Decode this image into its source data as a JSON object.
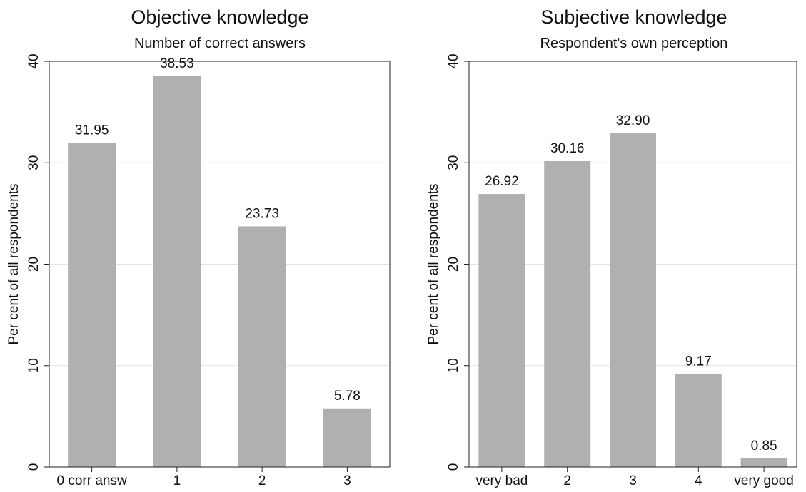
{
  "colors": {
    "bar": "#b0b0b0",
    "grid": "#e3e3e3",
    "axis": "#222222",
    "text": "#111111"
  },
  "chart_data": [
    {
      "type": "bar",
      "title": "Objective knowledge",
      "subtitle": "Number of correct answers",
      "ylabel": "Per cent of all respondents",
      "xlabel": "",
      "categories": [
        "0 corr answ",
        "1",
        "2",
        "3"
      ],
      "values": [
        31.95,
        38.53,
        23.73,
        5.78
      ],
      "value_labels": [
        "31.95",
        "38.53",
        "23.73",
        "5.78"
      ],
      "ylim": [
        0,
        40
      ],
      "yticks": [
        "0",
        "10",
        "20",
        "30",
        "40"
      ],
      "grid": true,
      "legend": "none"
    },
    {
      "type": "bar",
      "title": "Subjective knowledge",
      "subtitle": "Respondent's own perception",
      "ylabel": "Per cent of all respondents",
      "xlabel": "",
      "categories": [
        "very bad",
        "2",
        "3",
        "4",
        "very good"
      ],
      "values": [
        26.92,
        30.16,
        32.9,
        9.17,
        0.85
      ],
      "value_labels": [
        "26.92",
        "30.16",
        "32.90",
        "9.17",
        "0.85"
      ],
      "ylim": [
        0,
        40
      ],
      "yticks": [
        "0",
        "10",
        "20",
        "30",
        "40"
      ],
      "grid": true,
      "legend": "none"
    }
  ]
}
